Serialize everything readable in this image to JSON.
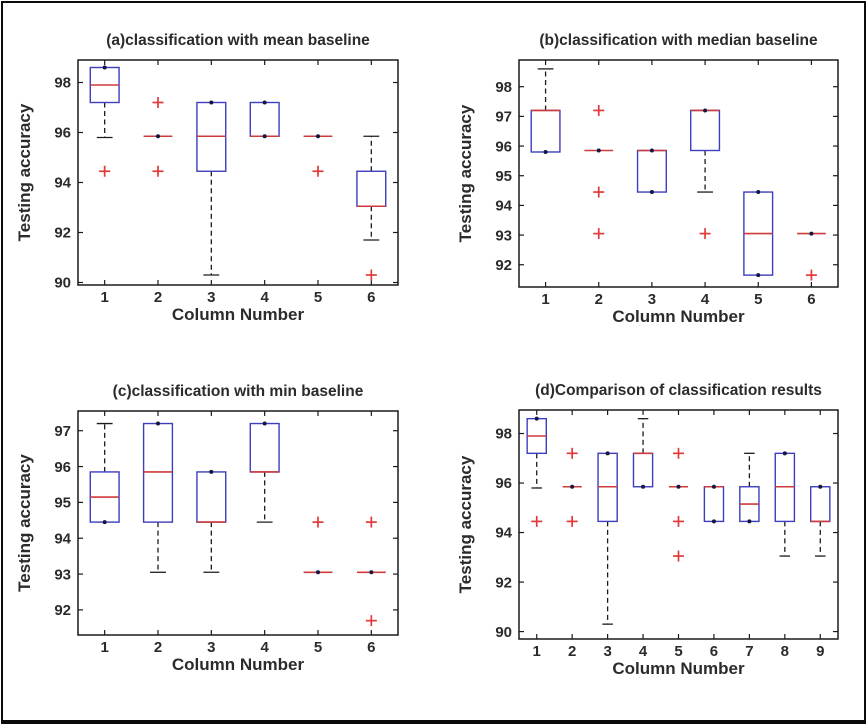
{
  "figure": {
    "background": "#ffffff",
    "frame_color": "#0b0b0b",
    "ylabel": "Testing accuracy",
    "xlabel": "Column Number"
  },
  "colors": {
    "box": "#3d3dc0",
    "median": "#cf3b3b",
    "whisker": "#1c1c1c",
    "cap": "#1c1c1c",
    "outlier": "#e03a3a",
    "dot": "#15153d",
    "axis": "#1a1a1a",
    "text": "#2b2b2b"
  },
  "chart_data": [
    {
      "type": "boxplot",
      "title": "(a)classification with mean baseline",
      "xlabel": "Column Number",
      "ylabel": "Testing accuracy",
      "categories": [
        "1",
        "2",
        "3",
        "4",
        "5",
        "6"
      ],
      "ylim": [
        89.9,
        98.9
      ],
      "yticks": [
        90,
        92,
        94,
        96,
        98
      ],
      "grid": false,
      "boxes": [
        {
          "q1": 97.2,
          "median": 97.9,
          "q3": 98.6,
          "whisker_low": 95.8,
          "whisker_high": 98.6,
          "outliers": [
            94.45
          ]
        },
        {
          "q1": 95.85,
          "median": 95.85,
          "q3": 95.85,
          "whisker_low": 95.85,
          "whisker_high": 95.85,
          "outliers": [
            97.2,
            94.45
          ]
        },
        {
          "q1": 94.45,
          "median": 95.85,
          "q3": 97.2,
          "whisker_low": 90.3,
          "whisker_high": 97.2,
          "outliers": []
        },
        {
          "q1": 95.85,
          "median": 95.85,
          "q3": 97.2,
          "whisker_low": 95.85,
          "whisker_high": 97.2,
          "outliers": []
        },
        {
          "q1": 95.85,
          "median": 95.85,
          "q3": 95.85,
          "whisker_low": 95.85,
          "whisker_high": 95.85,
          "outliers": [
            94.45
          ]
        },
        {
          "q1": 93.05,
          "median": 93.05,
          "q3": 94.45,
          "whisker_low": 91.7,
          "whisker_high": 95.85,
          "outliers": [
            90.3
          ]
        }
      ]
    },
    {
      "type": "boxplot",
      "title": "(b)classification with median baseline",
      "xlabel": "Column Number",
      "ylabel": "Testing accuracy",
      "categories": [
        "1",
        "2",
        "3",
        "4",
        "5",
        "6"
      ],
      "ylim": [
        91.25,
        98.9
      ],
      "yticks": [
        92,
        93,
        94,
        95,
        96,
        97,
        98
      ],
      "grid": false,
      "boxes": [
        {
          "q1": 95.8,
          "median": 97.2,
          "q3": 97.2,
          "whisker_low": 95.8,
          "whisker_high": 98.6,
          "outliers": []
        },
        {
          "q1": 95.85,
          "median": 95.85,
          "q3": 95.85,
          "whisker_low": 95.85,
          "whisker_high": 95.85,
          "outliers": [
            97.2,
            94.45,
            93.05
          ]
        },
        {
          "q1": 94.45,
          "median": 95.85,
          "q3": 95.85,
          "whisker_low": 94.45,
          "whisker_high": 95.85,
          "outliers": []
        },
        {
          "q1": 95.85,
          "median": 97.2,
          "q3": 97.2,
          "whisker_low": 94.45,
          "whisker_high": 97.2,
          "outliers": [
            93.05
          ]
        },
        {
          "q1": 91.65,
          "median": 93.05,
          "q3": 94.45,
          "whisker_low": 91.65,
          "whisker_high": 94.45,
          "outliers": []
        },
        {
          "q1": 93.05,
          "median": 93.05,
          "q3": 93.05,
          "whisker_low": 93.05,
          "whisker_high": 93.05,
          "outliers": [
            91.65
          ]
        }
      ]
    },
    {
      "type": "boxplot",
      "title": "(c)classification with min baseline",
      "xlabel": "Column Number",
      "ylabel": "Testing accuracy",
      "categories": [
        "1",
        "2",
        "3",
        "4",
        "5",
        "6"
      ],
      "ylim": [
        91.3,
        97.55
      ],
      "yticks": [
        92,
        93,
        94,
        95,
        96,
        97
      ],
      "grid": false,
      "boxes": [
        {
          "q1": 94.45,
          "median": 95.15,
          "q3": 95.85,
          "whisker_low": 94.45,
          "whisker_high": 97.2,
          "outliers": []
        },
        {
          "q1": 94.45,
          "median": 95.85,
          "q3": 97.2,
          "whisker_low": 93.05,
          "whisker_high": 97.2,
          "outliers": []
        },
        {
          "q1": 94.45,
          "median": 94.45,
          "q3": 95.85,
          "whisker_low": 93.05,
          "whisker_high": 95.85,
          "outliers": []
        },
        {
          "q1": 95.85,
          "median": 95.85,
          "q3": 97.2,
          "whisker_low": 94.45,
          "whisker_high": 97.2,
          "outliers": []
        },
        {
          "q1": 93.05,
          "median": 93.05,
          "q3": 93.05,
          "whisker_low": 93.05,
          "whisker_high": 93.05,
          "outliers": [
            94.45
          ]
        },
        {
          "q1": 93.05,
          "median": 93.05,
          "q3": 93.05,
          "whisker_low": 93.05,
          "whisker_high": 93.05,
          "outliers": [
            94.45,
            91.7
          ]
        }
      ]
    },
    {
      "type": "boxplot",
      "title": "(d)Comparison of classification results",
      "xlabel": "Column Number",
      "ylabel": "Testing accuracy",
      "categories": [
        "1",
        "2",
        "3",
        "4",
        "5",
        "6",
        "7",
        "8",
        "9"
      ],
      "ylim": [
        89.7,
        98.95
      ],
      "yticks": [
        90,
        92,
        94,
        96,
        98
      ],
      "grid": false,
      "boxes": [
        {
          "q1": 97.2,
          "median": 97.9,
          "q3": 98.6,
          "whisker_low": 95.8,
          "whisker_high": 98.6,
          "outliers": [
            94.45
          ]
        },
        {
          "q1": 95.85,
          "median": 95.85,
          "q3": 95.85,
          "whisker_low": 95.85,
          "whisker_high": 95.85,
          "outliers": [
            97.2,
            94.45
          ]
        },
        {
          "q1": 94.45,
          "median": 95.85,
          "q3": 97.2,
          "whisker_low": 90.3,
          "whisker_high": 97.2,
          "outliers": []
        },
        {
          "q1": 95.85,
          "median": 97.2,
          "q3": 97.2,
          "whisker_low": 95.85,
          "whisker_high": 98.6,
          "outliers": []
        },
        {
          "q1": 95.85,
          "median": 95.85,
          "q3": 95.85,
          "whisker_low": 95.85,
          "whisker_high": 95.85,
          "outliers": [
            97.2,
            94.45,
            93.05
          ]
        },
        {
          "q1": 94.45,
          "median": 95.85,
          "q3": 95.85,
          "whisker_low": 94.45,
          "whisker_high": 95.85,
          "outliers": []
        },
        {
          "q1": 94.45,
          "median": 95.15,
          "q3": 95.85,
          "whisker_low": 94.45,
          "whisker_high": 97.2,
          "outliers": []
        },
        {
          "q1": 94.45,
          "median": 95.85,
          "q3": 97.2,
          "whisker_low": 93.05,
          "whisker_high": 97.2,
          "outliers": []
        },
        {
          "q1": 94.45,
          "median": 94.45,
          "q3": 95.85,
          "whisker_low": 93.05,
          "whisker_high": 95.85,
          "outliers": []
        }
      ]
    }
  ]
}
